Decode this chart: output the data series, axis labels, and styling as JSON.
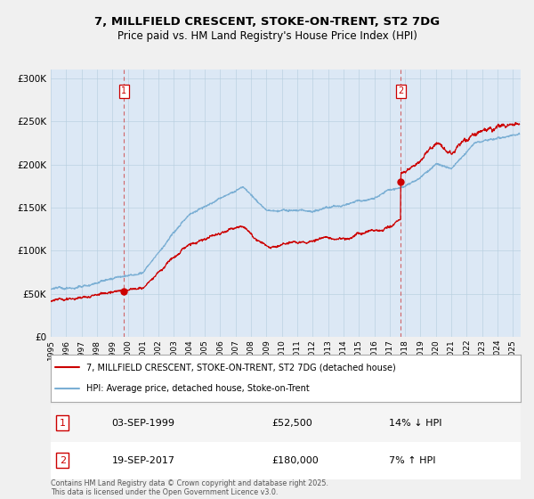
{
  "title_line1": "7, MILLFIELD CRESCENT, STOKE-ON-TRENT, ST2 7DG",
  "title_line2": "Price paid vs. HM Land Registry's House Price Index (HPI)",
  "legend_label1": "7, MILLFIELD CRESCENT, STOKE-ON-TRENT, ST2 7DG (detached house)",
  "legend_label2": "HPI: Average price, detached house, Stoke-on-Trent",
  "sale1_date": "03-SEP-1999",
  "sale1_price": 52500,
  "sale1_note": "14% ↓ HPI",
  "sale2_date": "19-SEP-2017",
  "sale2_price": 180000,
  "sale2_note": "7% ↑ HPI",
  "footer": "Contains HM Land Registry data © Crown copyright and database right 2025.\nThis data is licensed under the Open Government Licence v3.0.",
  "plot_color_red": "#cc0000",
  "plot_color_blue": "#7bafd4",
  "vline_color": "#cc4444",
  "background_color": "#f0f0f0",
  "plot_bg_color": "#dce8f5",
  "grid_color": "#b8cfe0",
  "ylim_max": 300,
  "sale1_year": 1999.75,
  "sale2_year": 2017.72
}
